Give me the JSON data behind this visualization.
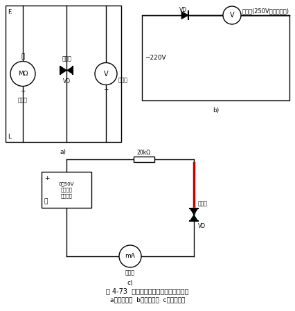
{
  "title": "图 4-73  双向触发二极管转折电压的检测",
  "subtitle": "a）方法之一  b）方法之二  c）方法之三",
  "fig_width": 4.27,
  "fig_height": 4.49,
  "dpi": 100,
  "bg_color": "#ffffff",
  "lw": 1.0,
  "fs": 6.5,
  "panel_a_ohmmeter": "MΩ",
  "panel_a_ohm_label": "兆欧表",
  "panel_a_vd_label": "被测管",
  "panel_a_vd": "VD",
  "panel_a_v_label": "万用表",
  "panel_a_corner_tl": "F.",
  "panel_a_corner_bl": "L",
  "panel_b_title": "万用表(250V交流电压档)",
  "panel_b_source": "~220V",
  "panel_b_vd": "VD",
  "panel_b_v": "V",
  "panel_c_resistor": "20kΩ",
  "panel_c_source": "0～50V\n连续可调\n直流电源",
  "panel_c_vd_label": "被测管",
  "panel_c_vd": "VD",
  "panel_c_ammeter": "mA",
  "panel_c_meter": "万用表",
  "label_a": "a)",
  "label_b": "b)",
  "label_c": "c)"
}
